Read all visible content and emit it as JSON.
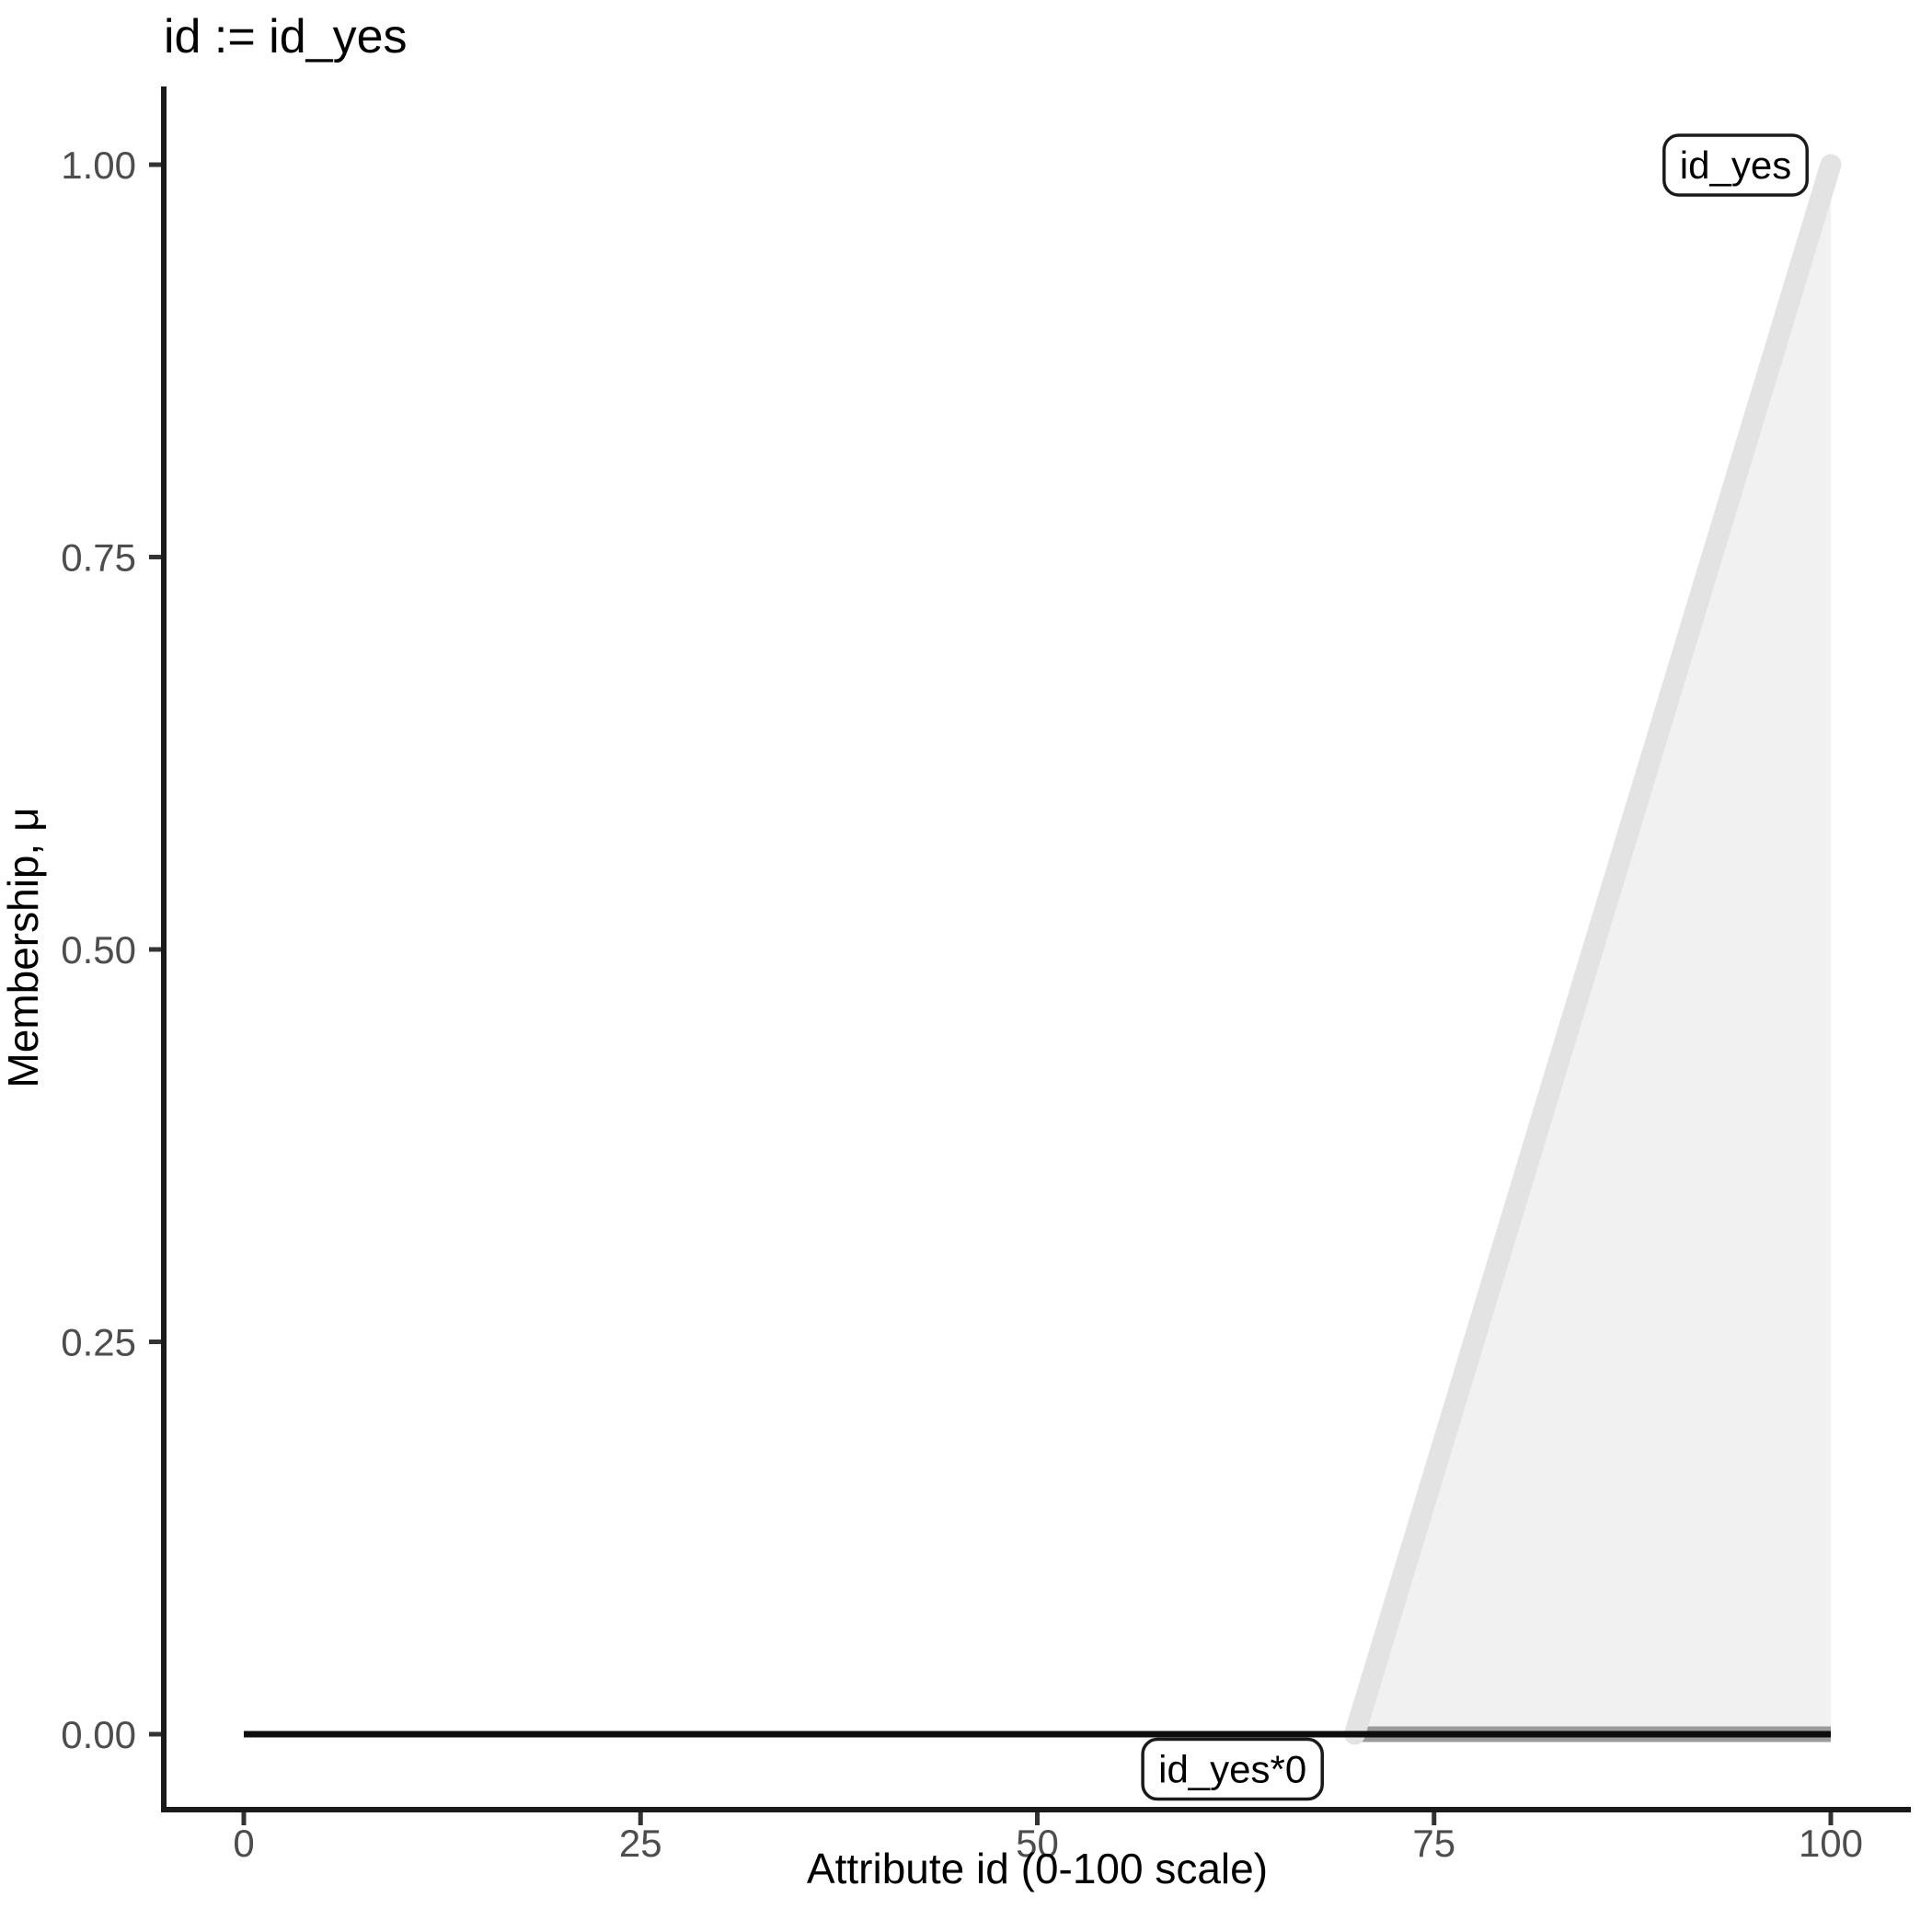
{
  "chart_data": {
    "type": "area",
    "title": "id := id_yes",
    "xlabel": "Attribute id (0-100 scale)",
    "ylabel": "Membership, μ",
    "xlim": [
      0,
      100
    ],
    "ylim": [
      0,
      1
    ],
    "grid": "off",
    "legend": "none",
    "x_ticks": {
      "values": [
        0,
        25,
        50,
        75,
        100
      ],
      "labels": [
        "0",
        "25",
        "50",
        "75",
        "100"
      ]
    },
    "y_ticks": {
      "values": [
        0,
        0.25,
        0.5,
        0.75,
        1
      ],
      "labels": [
        "0.00",
        "0.25",
        "0.50",
        "0.75",
        "1.00"
      ]
    },
    "series": [
      {
        "name": "id_yes",
        "kind": "area",
        "points": [
          [
            70,
            0
          ],
          [
            100,
            1
          ]
        ],
        "closed_to_baseline": true,
        "fill_color": "#F1F1F1",
        "line_color": "#E3E3E3",
        "line_width": 23,
        "baseline_edge_color": "#9B9B9B",
        "baseline_edge_width": 17
      },
      {
        "name": "id_yes*0",
        "kind": "line",
        "points": [
          [
            0,
            0
          ],
          [
            100,
            0
          ]
        ],
        "line_color": "#0D0D0D",
        "line_width": 7
      }
    ],
    "annotations": [
      {
        "text": "id_yes",
        "x": 94,
        "y": 1.0,
        "boxed": true
      },
      {
        "text": "id_yes*0",
        "x": 62.3,
        "y": -0.022,
        "boxed": true
      }
    ]
  },
  "colors": {
    "background": "#FFFFFF",
    "axis_line": "#1A1A1A",
    "tick_mark": "#333333",
    "tick_label": "#4D4D4D",
    "annotation_border": "#1A1A1A",
    "annotation_fill": "#FFFFFF",
    "text": "#000000"
  }
}
